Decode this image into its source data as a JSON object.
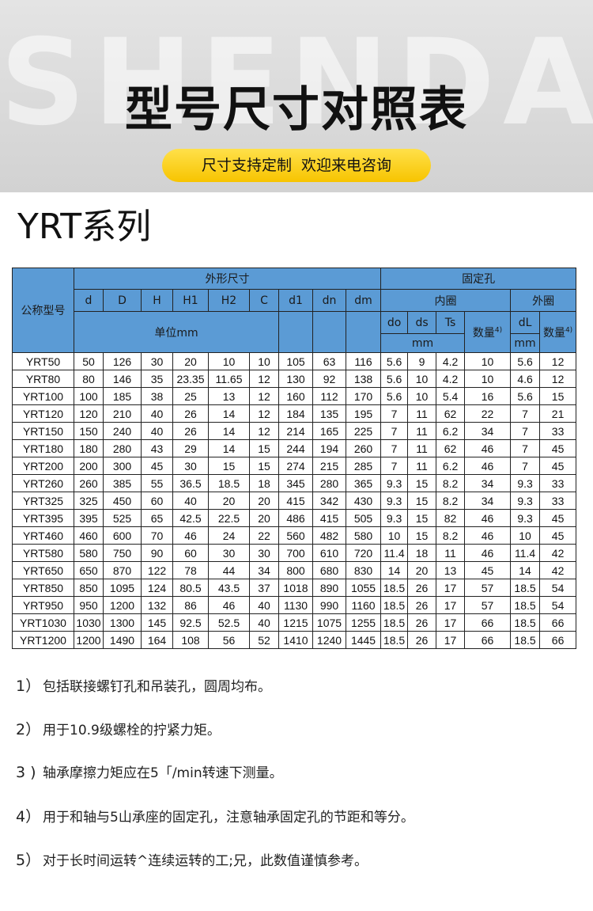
{
  "header": {
    "watermark": "SHENDA",
    "title": "型号尺寸对照表",
    "tagline": "尺寸支持定制  欢迎来电咨询"
  },
  "series_title": "YRT系列",
  "table": {
    "header": {
      "model": "公称型号",
      "outer_dims": "外形尺寸",
      "fixing_holes": "固定孔",
      "inner_ring": "内圈",
      "outer_ring": "外圈",
      "unit": "单位mm",
      "unit_inner": "mm",
      "unit_outer": "mm",
      "columns": [
        "d",
        "D",
        "H",
        "H1",
        "H2",
        "C",
        "d1",
        "dn",
        "dm",
        "do",
        "ds",
        "Ts",
        {
          "text": "数量",
          "note": "4)"
        },
        "dL",
        {
          "text": "数量",
          "note": "4)"
        }
      ]
    },
    "rows": [
      [
        "YRT50",
        "50",
        "126",
        "30",
        "20",
        "10",
        "10",
        "105",
        "63",
        "116",
        "5.6",
        "9",
        "4.2",
        "10",
        "5.6",
        "12"
      ],
      [
        "YRT80",
        "80",
        "146",
        "35",
        "23.35",
        "11.65",
        "12",
        "130",
        "92",
        "138",
        "5.6",
        "10",
        "4.2",
        "10",
        "4.6",
        "12"
      ],
      [
        "YRT100",
        "100",
        "185",
        "38",
        "25",
        "13",
        "12",
        "160",
        "112",
        "170",
        "5.6",
        "10",
        "5.4",
        "16",
        "5.6",
        "15"
      ],
      [
        "YRT120",
        "120",
        "210",
        "40",
        "26",
        "14",
        "12",
        "184",
        "135",
        "195",
        "7",
        "11",
        "62",
        "22",
        "7",
        "21"
      ],
      [
        "YRT150",
        "150",
        "240",
        "40",
        "26",
        "14",
        "12",
        "214",
        "165",
        "225",
        "7",
        "11",
        "6.2",
        "34",
        "7",
        "33"
      ],
      [
        "YRT180",
        "180",
        "280",
        "43",
        "29",
        "14",
        "15",
        "244",
        "194",
        "260",
        "7",
        "11",
        "62",
        "46",
        "7",
        "45"
      ],
      [
        "YRT200",
        "200",
        "300",
        "45",
        "30",
        "15",
        "15",
        "274",
        "215",
        "285",
        "7",
        "11",
        "6.2",
        "46",
        "7",
        "45"
      ],
      [
        "YRT260",
        "260",
        "385",
        "55",
        "36.5",
        "18.5",
        "18",
        "345",
        "280",
        "365",
        "9.3",
        "15",
        "8.2",
        "34",
        "9.3",
        "33"
      ],
      [
        "YRT325",
        "325",
        "450",
        "60",
        "40",
        "20",
        "20",
        "415",
        "342",
        "430",
        "9.3",
        "15",
        "8.2",
        "34",
        "9.3",
        "33"
      ],
      [
        "YRT395",
        "395",
        "525",
        "65",
        "42.5",
        "22.5",
        "20",
        "486",
        "415",
        "505",
        "9.3",
        "15",
        "82",
        "46",
        "9.3",
        "45"
      ],
      [
        "YRT460",
        "460",
        "600",
        "70",
        "46",
        "24",
        "22",
        "560",
        "482",
        "580",
        "10",
        "15",
        "8.2",
        "46",
        "10",
        "45"
      ],
      [
        "YRT580",
        "580",
        "750",
        "90",
        "60",
        "30",
        "30",
        "700",
        "610",
        "720",
        "11.4",
        "18",
        "11",
        "46",
        "11.4",
        "42"
      ],
      [
        "YRT650",
        "650",
        "870",
        "122",
        "78",
        "44",
        "34",
        "800",
        "680",
        "830",
        "14",
        "20",
        "13",
        "45",
        "14",
        "42"
      ],
      [
        "YRT850",
        "850",
        "1095",
        "124",
        "80.5",
        "43.5",
        "37",
        "1018",
        "890",
        "1055",
        "18.5",
        "26",
        "17",
        "57",
        "18.5",
        "54"
      ],
      [
        "YRT950",
        "950",
        "1200",
        "132",
        "86",
        "46",
        "40",
        "1130",
        "990",
        "1160",
        "18.5",
        "26",
        "17",
        "57",
        "18.5",
        "54"
      ],
      [
        "YRT1030",
        "1030",
        "1300",
        "145",
        "92.5",
        "52.5",
        "40",
        "1215",
        "1075",
        "1255",
        "18.5",
        "26",
        "17",
        "66",
        "18.5",
        "66"
      ],
      [
        "YRT1200",
        "1200",
        "1490",
        "164",
        "108",
        "56",
        "52",
        "1410",
        "1240",
        "1445",
        "18.5",
        "26",
        "17",
        "66",
        "18.5",
        "66"
      ]
    ]
  },
  "notes": [
    {
      "marker": "1）",
      "text": "包括联接螺钉孔和吊装孔，圆周均布。"
    },
    {
      "marker": "2）",
      "text": "用于10.9级螺栓的拧紧力矩。"
    },
    {
      "marker": "3 )",
      "text": "轴承摩擦力矩应在5「/min转速下测量。"
    },
    {
      "marker": "4）",
      "text": "用于和轴与5山承座的固定孔，注意轴承固定孔的节距和等分。"
    },
    {
      "marker": "5）",
      "text": "对于长时间运转^连续运转的工;兄，此数值谨慎参考。"
    }
  ]
}
